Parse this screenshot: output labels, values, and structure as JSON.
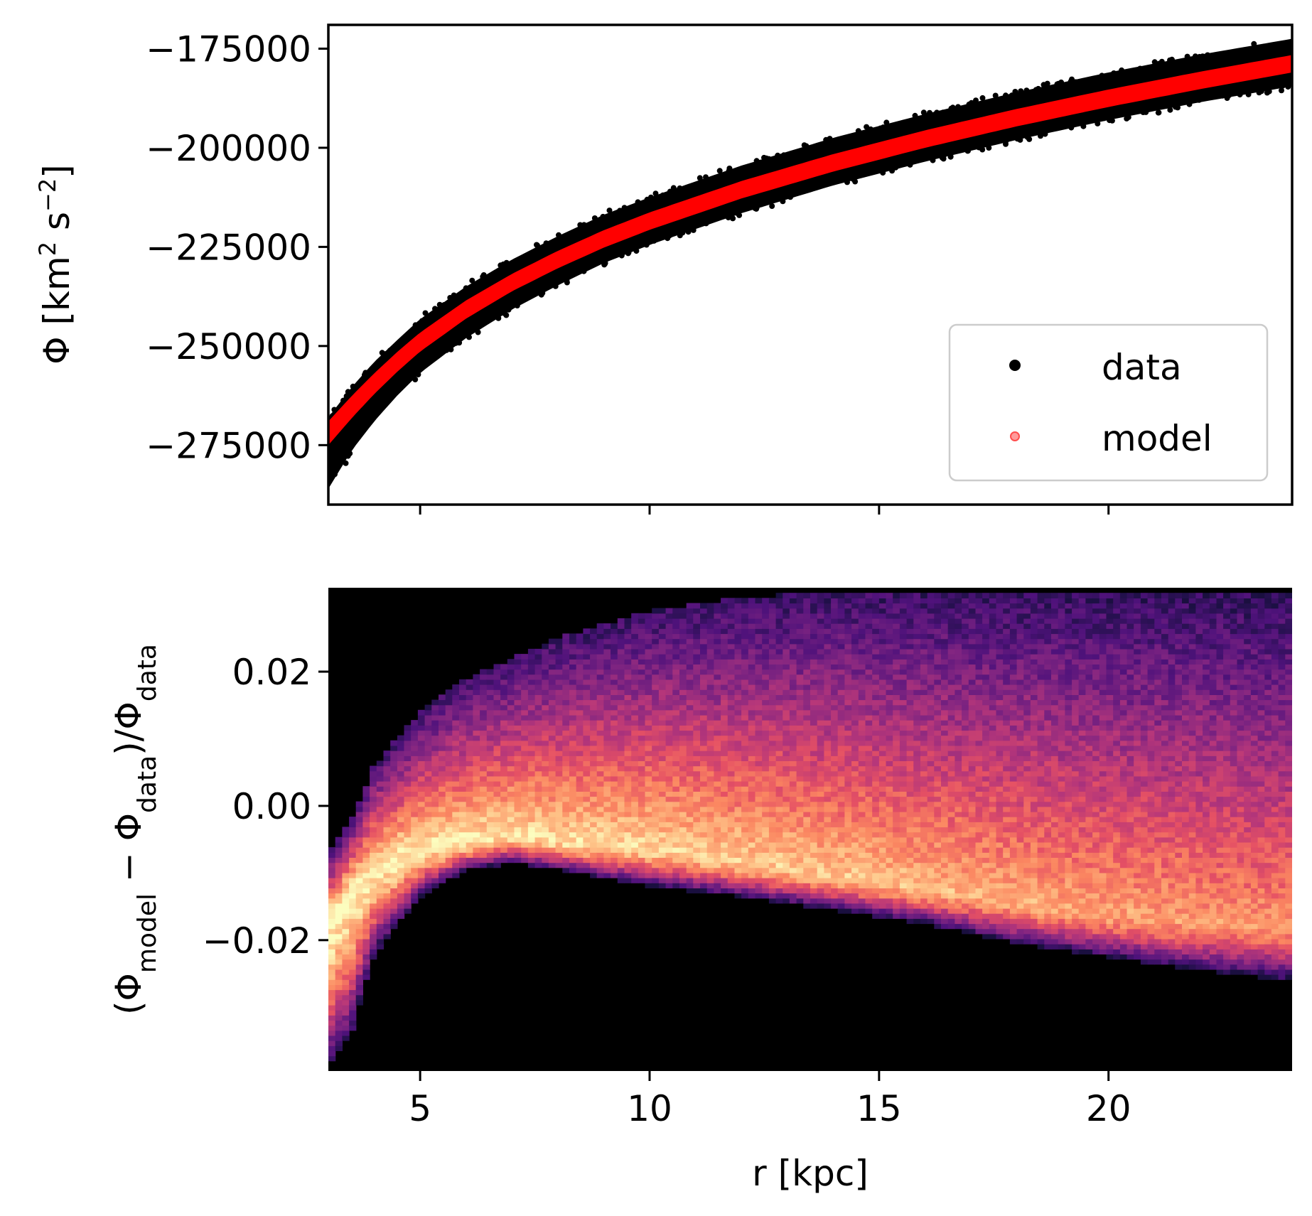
{
  "chart_data": [
    {
      "type": "scatter",
      "panel": "top",
      "xlim": [
        3,
        24
      ],
      "ylim": [
        -290000,
        -169000
      ],
      "ylabel": {
        "main": "Φ [km",
        "sup1": "2",
        "mid": " s",
        "sup2": "−2",
        "end": "]"
      },
      "yticks": [
        -175000,
        -200000,
        -225000,
        -250000,
        -275000
      ],
      "ytick_labels": [
        "−175000",
        "−200000",
        "−225000",
        "−250000",
        "−275000"
      ],
      "xticks": [
        5,
        10,
        15,
        20
      ],
      "grid": false,
      "legend": {
        "placement": "lower-right",
        "entries": [
          "data",
          "model"
        ]
      },
      "series": [
        {
          "name": "data",
          "color": "#000000",
          "r": [
            3,
            3.5,
            4,
            4.5,
            5,
            6,
            7,
            8,
            9,
            10,
            12,
            14,
            16,
            18,
            20,
            22,
            24
          ],
          "phi": [
            -277000,
            -268500,
            -261500,
            -255500,
            -250000,
            -241500,
            -234500,
            -228500,
            -223000,
            -218500,
            -210500,
            -203500,
            -197500,
            -192000,
            -187000,
            -182500,
            -178500
          ],
          "spread": [
            9000,
            8000,
            7500,
            7000,
            6800,
            6500,
            6300,
            6200,
            6100,
            6000,
            6000,
            6000,
            6000,
            6000,
            6000,
            6000,
            6000
          ]
        },
        {
          "name": "model",
          "color": "#ff0000",
          "r": [
            3,
            3.5,
            4,
            4.5,
            5,
            6,
            7,
            8,
            9,
            10,
            12,
            14,
            16,
            18,
            20,
            22,
            24
          ],
          "phi": [
            -272000,
            -265500,
            -259500,
            -254000,
            -249000,
            -240800,
            -234000,
            -228200,
            -223000,
            -218500,
            -210600,
            -203800,
            -197800,
            -192400,
            -187500,
            -183000,
            -178800
          ],
          "spread": [
            3000,
            2800,
            2600,
            2500,
            2400,
            2300,
            2200,
            2200,
            2200,
            2200,
            2200,
            2200,
            2200,
            2200,
            2200,
            2200,
            2200
          ]
        }
      ]
    },
    {
      "type": "heatmap",
      "panel": "bottom",
      "xlim": [
        3,
        24
      ],
      "ylim": [
        -0.0395,
        0.0325
      ],
      "xlabel": "r [kpc]",
      "ylabel": {
        "open": "(Φ",
        "sub1": "model",
        "mid": " − Φ",
        "sub2": "data",
        "close": ")/Φ",
        "sub3": "data"
      },
      "xticks": [
        5,
        10,
        15,
        20
      ],
      "xtick_labels": [
        "5",
        "10",
        "15",
        "20"
      ],
      "yticks": [
        0.02,
        0.0,
        -0.02
      ],
      "ytick_labels": [
        "0.02",
        "0.00",
        "−0.02"
      ],
      "colormap": "magma",
      "grid": false,
      "ridge": {
        "r": [
          3.0,
          3.5,
          4.0,
          5.0,
          6.0,
          7.0,
          8.0,
          10.0,
          12.0,
          14.0,
          16.0,
          18.0,
          20.0,
          22.0,
          24.0
        ],
        "center": [
          -0.017,
          -0.012,
          -0.009,
          -0.006,
          -0.005,
          -0.004,
          -0.005,
          -0.006,
          -0.008,
          -0.01,
          -0.012,
          -0.014,
          -0.016,
          -0.017,
          -0.018
        ],
        "lower": [
          -0.039,
          -0.034,
          -0.022,
          -0.0135,
          -0.0095,
          -0.0085,
          -0.0095,
          -0.012,
          -0.0135,
          -0.0155,
          -0.0175,
          -0.0205,
          -0.0225,
          -0.0245,
          -0.026
        ],
        "upper": [
          -0.007,
          -0.002,
          0.006,
          0.014,
          0.019,
          0.022,
          0.025,
          0.029,
          0.031,
          0.032,
          0.032,
          0.032,
          0.032,
          0.032,
          0.032
        ]
      }
    }
  ]
}
